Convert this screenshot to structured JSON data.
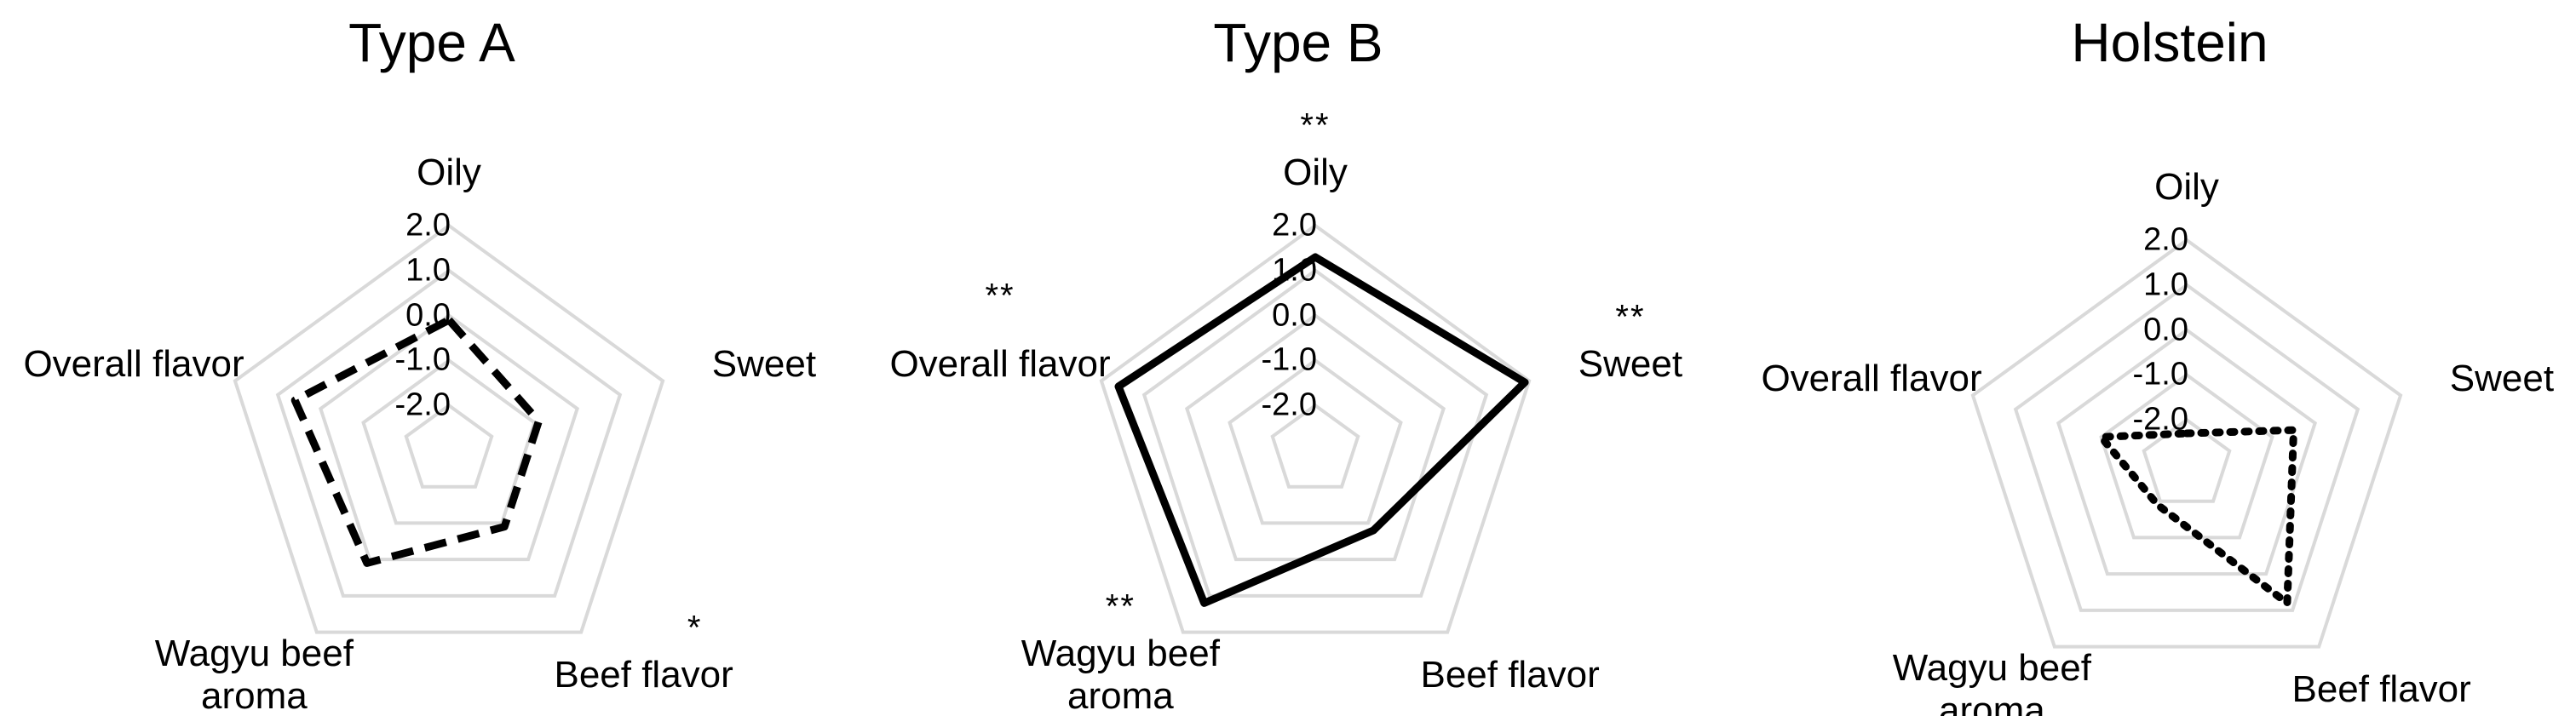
{
  "chart_data": [
    {
      "type": "radar",
      "title": "Type A",
      "categories": [
        "Oily",
        "Sweet",
        "Beef flavor",
        "Wagyu beef aroma",
        "Overall flavor"
      ],
      "series": [
        {
          "color": "#000000",
          "linestyle": "dashed",
          "values": [
            -0.1,
            -0.9,
            -0.9,
            0.1,
            0.6
          ]
        }
      ],
      "rlim": [
        -3,
        2
      ],
      "rticks": [
        {
          "value": -2,
          "label": "-2.0"
        },
        {
          "value": -1,
          "label": "-1.0"
        },
        {
          "value": 0,
          "label": "0.0"
        },
        {
          "value": 1,
          "label": "1.0"
        },
        {
          "value": 2,
          "label": "2.0"
        }
      ],
      "grid_color": "#d9d9d9",
      "annotations": [
        {
          "category": "Beef flavor",
          "text": "*"
        }
      ]
    },
    {
      "type": "radar",
      "title": "Type B",
      "categories": [
        "Oily",
        "Sweet",
        "Beef flavor",
        "Wagyu beef aroma",
        "Overall flavor"
      ],
      "series": [
        {
          "color": "#000000",
          "linestyle": "solid",
          "values": [
            1.3,
            1.9,
            -0.8,
            1.2,
            1.6
          ]
        }
      ],
      "rlim": [
        -3,
        2
      ],
      "rticks": [
        {
          "value": -2,
          "label": "-2.0"
        },
        {
          "value": -1,
          "label": "-1.0"
        },
        {
          "value": 0,
          "label": "0.0"
        },
        {
          "value": 1,
          "label": "1.0"
        },
        {
          "value": 2,
          "label": "2.0"
        }
      ],
      "grid_color": "#d9d9d9",
      "annotations": [
        {
          "category": "Oily",
          "text": "**"
        },
        {
          "category": "Sweet",
          "text": "**"
        },
        {
          "category": "Wagyu beef aroma",
          "text": "**"
        },
        {
          "category": "Overall flavor",
          "text": "**"
        }
      ]
    },
    {
      "type": "radar",
      "title": "Holstein",
      "categories": [
        "Oily",
        "Sweet",
        "Beef flavor",
        "Wagyu beef aroma",
        "Overall flavor"
      ],
      "series": [
        {
          "color": "#000000",
          "linestyle": "dotted",
          "values": [
            -2.3,
            -0.5,
            0.8,
            -1.9,
            -1.0
          ]
        }
      ],
      "rlim": [
        -3,
        2
      ],
      "rticks": [
        {
          "value": -2,
          "label": "-2.0"
        },
        {
          "value": -1,
          "label": "-1.0"
        },
        {
          "value": 0,
          "label": "0.0"
        },
        {
          "value": 1,
          "label": "1.0"
        },
        {
          "value": 2,
          "label": "2.0"
        }
      ],
      "grid_color": "#d9d9d9"
    }
  ]
}
